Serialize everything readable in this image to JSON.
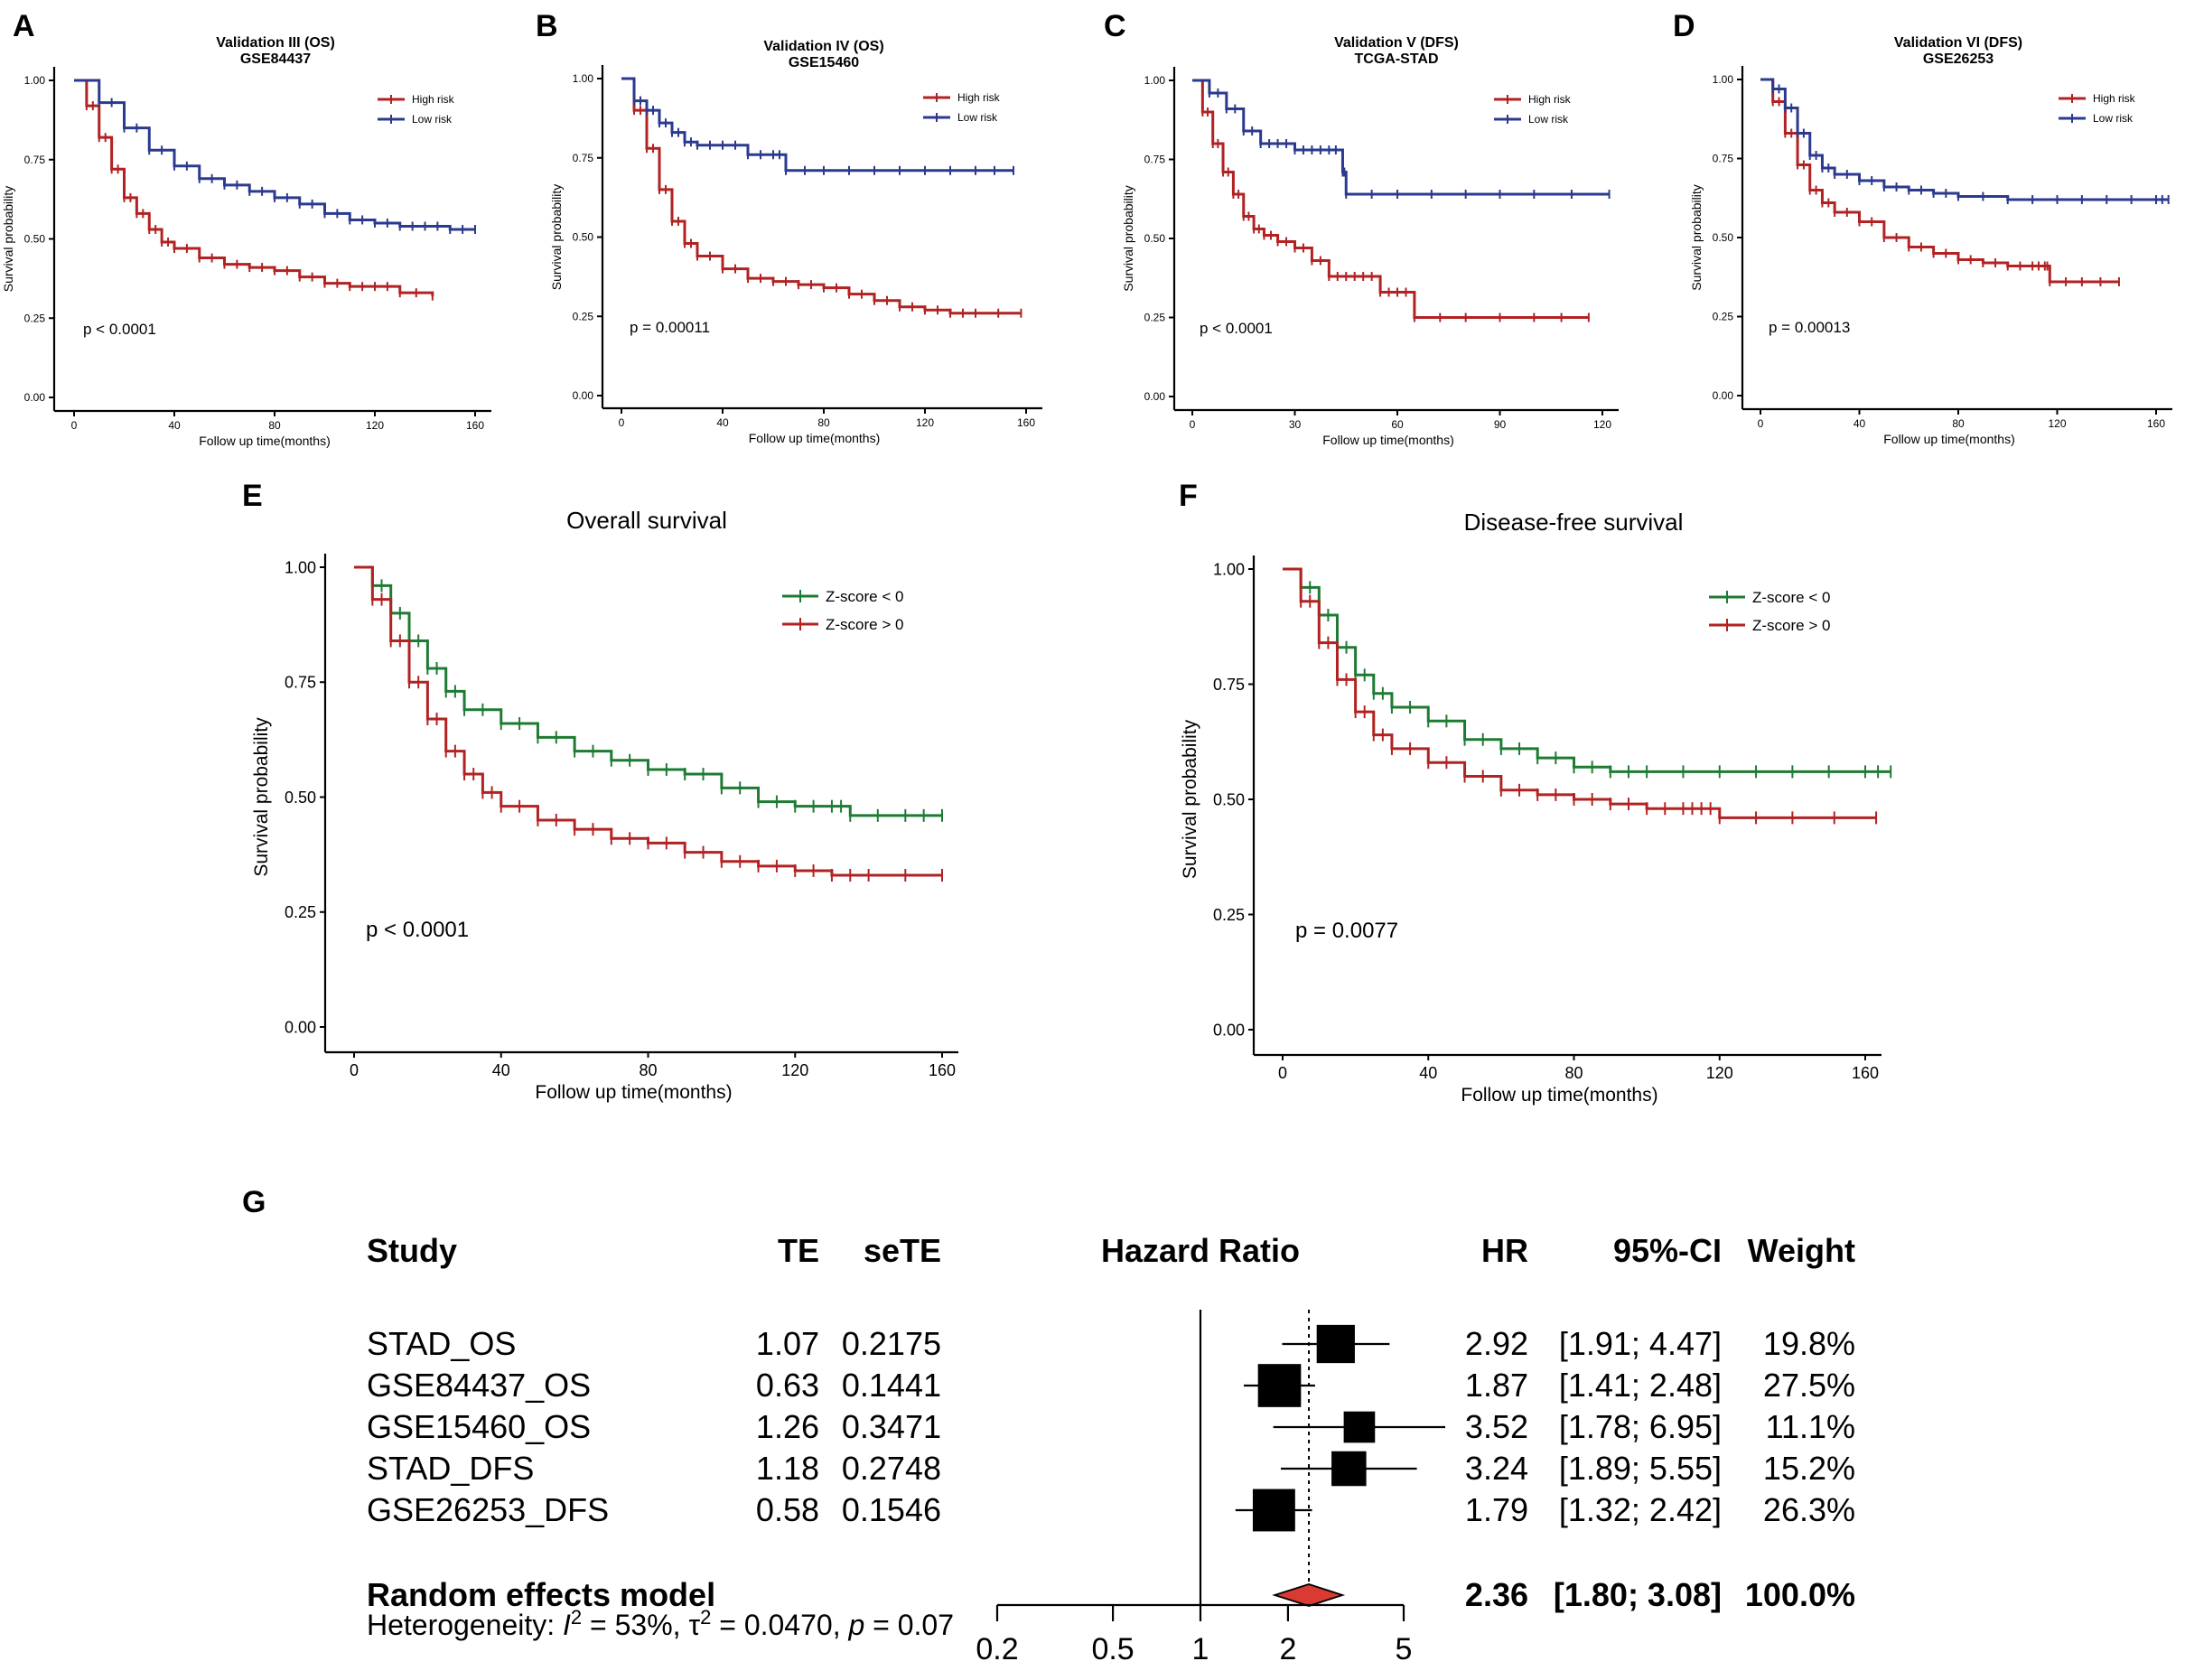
{
  "colors": {
    "high": "#B22222",
    "low": "#2B3A8F",
    "zneg": "#1E7B33",
    "zpos": "#B22222",
    "diamond": "#D93A32"
  },
  "panels": {
    "A": {
      "label": "A"
    },
    "B": {
      "label": "B"
    },
    "C": {
      "label": "C"
    },
    "D": {
      "label": "D"
    },
    "E": {
      "label": "E"
    },
    "F": {
      "label": "F"
    },
    "G": {
      "label": "G"
    }
  },
  "chart_data": [
    {
      "id": "A",
      "type": "line",
      "title": "Validation III (OS)",
      "subtitle": "GSE84437",
      "xlabel": "Follow up time(months)",
      "ylabel": "Survival probability",
      "xlim": [
        0,
        160
      ],
      "xticks": [
        "0",
        "40",
        "80",
        "120",
        "160"
      ],
      "xtick_values": [
        0,
        40,
        80,
        120,
        160
      ],
      "ylim": [
        0,
        1
      ],
      "yticks": [
        "0.00",
        "0.25",
        "0.50",
        "0.75",
        "1.00"
      ],
      "ytick_values": [
        0,
        0.25,
        0.5,
        0.75,
        1
      ],
      "pvalue": "p < 0.0001",
      "legend_position": "top-right",
      "series": [
        {
          "name": "High risk",
          "color_key": "high",
          "x": [
            0,
            5,
            10,
            15,
            20,
            25,
            30,
            35,
            40,
            50,
            60,
            70,
            80,
            90,
            100,
            110,
            120,
            130,
            143
          ],
          "y": [
            1.0,
            0.92,
            0.82,
            0.72,
            0.63,
            0.58,
            0.53,
            0.49,
            0.47,
            0.44,
            0.42,
            0.41,
            0.4,
            0.38,
            0.36,
            0.35,
            0.35,
            0.33,
            0.32
          ]
        },
        {
          "name": "Low risk",
          "color_key": "low",
          "x": [
            0,
            10,
            20,
            30,
            40,
            50,
            60,
            70,
            80,
            90,
            100,
            110,
            120,
            130,
            140,
            150,
            160
          ],
          "y": [
            1.0,
            0.93,
            0.85,
            0.78,
            0.73,
            0.69,
            0.67,
            0.65,
            0.63,
            0.61,
            0.58,
            0.56,
            0.55,
            0.54,
            0.54,
            0.53,
            0.53
          ]
        }
      ]
    },
    {
      "id": "B",
      "type": "line",
      "title": "Validation IV (OS)",
      "subtitle": "GSE15460",
      "xlabel": "Follow up time(months)",
      "ylabel": "Survival probability",
      "xlim": [
        0,
        160
      ],
      "xticks": [
        "0",
        "40",
        "80",
        "120",
        "160"
      ],
      "xtick_values": [
        0,
        40,
        80,
        120,
        160
      ],
      "ylim": [
        0,
        1
      ],
      "yticks": [
        "0.00",
        "0.25",
        "0.50",
        "0.75",
        "1.00"
      ],
      "ytick_values": [
        0,
        0.25,
        0.5,
        0.75,
        1
      ],
      "pvalue": "p = 0.00011",
      "legend_position": "top-right",
      "series": [
        {
          "name": "High risk",
          "color_key": "high",
          "x": [
            0,
            5,
            10,
            15,
            20,
            25,
            30,
            40,
            50,
            60,
            70,
            80,
            90,
            100,
            110,
            120,
            130,
            140,
            158
          ],
          "y": [
            1.0,
            0.9,
            0.78,
            0.65,
            0.55,
            0.48,
            0.44,
            0.4,
            0.37,
            0.36,
            0.35,
            0.34,
            0.32,
            0.3,
            0.28,
            0.27,
            0.26,
            0.26,
            0.26
          ]
        },
        {
          "name": "Low risk",
          "color_key": "low",
          "x": [
            0,
            5,
            10,
            15,
            20,
            25,
            30,
            40,
            50,
            60,
            65,
            80,
            100,
            120,
            140,
            155
          ],
          "y": [
            1.0,
            0.93,
            0.9,
            0.86,
            0.83,
            0.8,
            0.79,
            0.79,
            0.76,
            0.76,
            0.71,
            0.71,
            0.71,
            0.71,
            0.71,
            0.71
          ]
        }
      ]
    },
    {
      "id": "C",
      "type": "line",
      "title": "Validation V (DFS)",
      "subtitle": "TCGA-STAD",
      "xlabel": "Follow up time(months)",
      "ylabel": "Survival probability",
      "xlim": [
        0,
        120
      ],
      "xticks": [
        "0",
        "30",
        "60",
        "90",
        "120"
      ],
      "xtick_values": [
        0,
        30,
        60,
        90,
        120
      ],
      "ylim": [
        0,
        1
      ],
      "yticks": [
        "0.00",
        "0.25",
        "0.50",
        "0.75",
        "1.00"
      ],
      "ytick_values": [
        0,
        0.25,
        0.5,
        0.75,
        1
      ],
      "pvalue": "p < 0.0001",
      "legend_position": "top-right",
      "series": [
        {
          "name": "High risk",
          "color_key": "high",
          "x": [
            0,
            3,
            6,
            9,
            12,
            15,
            18,
            21,
            25,
            30,
            35,
            40,
            45,
            50,
            55,
            60,
            65,
            80,
            100,
            116
          ],
          "y": [
            1.0,
            0.9,
            0.8,
            0.71,
            0.64,
            0.57,
            0.53,
            0.51,
            0.49,
            0.47,
            0.43,
            0.38,
            0.38,
            0.38,
            0.33,
            0.33,
            0.25,
            0.25,
            0.25,
            0.25
          ]
        },
        {
          "name": "Low risk",
          "color_key": "low",
          "x": [
            0,
            5,
            10,
            15,
            20,
            25,
            30,
            35,
            40,
            44,
            45,
            60,
            80,
            100,
            122
          ],
          "y": [
            1.0,
            0.96,
            0.91,
            0.84,
            0.8,
            0.8,
            0.78,
            0.78,
            0.78,
            0.71,
            0.64,
            0.64,
            0.64,
            0.64,
            0.64
          ]
        }
      ]
    },
    {
      "id": "D",
      "type": "line",
      "title": "Validation VI (DFS)",
      "subtitle": "GSE26253",
      "xlabel": "Follow up time(months)",
      "ylabel": "Survival probability",
      "xlim": [
        0,
        160
      ],
      "xticks": [
        "0",
        "40",
        "80",
        "120",
        "160"
      ],
      "xtick_values": [
        0,
        40,
        80,
        120,
        160
      ],
      "ylim": [
        0,
        1
      ],
      "yticks": [
        "0.00",
        "0.25",
        "0.50",
        "0.75",
        "1.00"
      ],
      "ytick_values": [
        0,
        0.25,
        0.5,
        0.75,
        1
      ],
      "pvalue": "p = 0.00013",
      "legend_position": "top-right",
      "series": [
        {
          "name": "High risk",
          "color_key": "high",
          "x": [
            0,
            5,
            10,
            15,
            20,
            25,
            30,
            40,
            50,
            60,
            70,
            80,
            90,
            100,
            110,
            115,
            117,
            130,
            145
          ],
          "y": [
            1.0,
            0.93,
            0.83,
            0.73,
            0.65,
            0.61,
            0.58,
            0.55,
            0.5,
            0.47,
            0.45,
            0.43,
            0.42,
            0.41,
            0.41,
            0.41,
            0.36,
            0.36,
            0.36
          ]
        },
        {
          "name": "Low risk",
          "color_key": "low",
          "x": [
            0,
            5,
            10,
            15,
            20,
            25,
            30,
            40,
            50,
            60,
            70,
            80,
            100,
            120,
            140,
            160,
            165
          ],
          "y": [
            1.0,
            0.97,
            0.91,
            0.83,
            0.76,
            0.72,
            0.7,
            0.68,
            0.66,
            0.65,
            0.64,
            0.63,
            0.62,
            0.62,
            0.62,
            0.62,
            0.62
          ]
        }
      ]
    },
    {
      "id": "E",
      "type": "line",
      "title": "Overall survival",
      "subtitle": "",
      "xlabel": "Follow up time(months)",
      "ylabel": "Survival probability",
      "xlim": [
        0,
        160
      ],
      "xticks": [
        "0",
        "40",
        "80",
        "120",
        "160"
      ],
      "xtick_values": [
        0,
        40,
        80,
        120,
        160
      ],
      "ylim": [
        0,
        1
      ],
      "yticks": [
        "0.00",
        "0.25",
        "0.50",
        "0.75",
        "1.00"
      ],
      "ytick_values": [
        0,
        0.25,
        0.5,
        0.75,
        1
      ],
      "pvalue": "p < 0.0001",
      "legend_position": "top-right",
      "series": [
        {
          "name": "Z-score < 0",
          "color_key": "zneg",
          "x": [
            0,
            5,
            10,
            15,
            20,
            25,
            30,
            40,
            50,
            60,
            70,
            80,
            90,
            100,
            110,
            120,
            130,
            135,
            150,
            160
          ],
          "y": [
            1.0,
            0.96,
            0.9,
            0.84,
            0.78,
            0.73,
            0.69,
            0.66,
            0.63,
            0.6,
            0.58,
            0.56,
            0.55,
            0.52,
            0.49,
            0.48,
            0.48,
            0.46,
            0.46,
            0.46
          ]
        },
        {
          "name": "Z-score > 0",
          "color_key": "zpos",
          "x": [
            0,
            5,
            10,
            15,
            20,
            25,
            30,
            35,
            40,
            50,
            60,
            70,
            80,
            90,
            100,
            110,
            120,
            130,
            140,
            160
          ],
          "y": [
            1.0,
            0.93,
            0.84,
            0.75,
            0.67,
            0.6,
            0.55,
            0.51,
            0.48,
            0.45,
            0.43,
            0.41,
            0.4,
            0.38,
            0.36,
            0.35,
            0.34,
            0.33,
            0.33,
            0.33
          ]
        }
      ]
    },
    {
      "id": "F",
      "type": "line",
      "title": "Disease-free survival",
      "subtitle": "",
      "xlabel": "Follow up time(months)",
      "ylabel": "Survival probability",
      "xlim": [
        0,
        160
      ],
      "xticks": [
        "0",
        "40",
        "80",
        "120",
        "160"
      ],
      "xtick_values": [
        0,
        40,
        80,
        120,
        160
      ],
      "ylim": [
        0,
        1
      ],
      "yticks": [
        "0.00",
        "0.25",
        "0.50",
        "0.75",
        "1.00"
      ],
      "ytick_values": [
        0,
        0.25,
        0.5,
        0.75,
        1
      ],
      "pvalue": "p = 0.0077",
      "legend_position": "top-right",
      "series": [
        {
          "name": "Z-score < 0",
          "color_key": "zneg",
          "x": [
            0,
            5,
            10,
            15,
            20,
            25,
            30,
            40,
            50,
            60,
            70,
            80,
            90,
            100,
            120,
            140,
            160,
            167
          ],
          "y": [
            1.0,
            0.96,
            0.9,
            0.83,
            0.77,
            0.73,
            0.7,
            0.67,
            0.63,
            0.61,
            0.59,
            0.57,
            0.56,
            0.56,
            0.56,
            0.56,
            0.56,
            0.56
          ]
        },
        {
          "name": "Z-score > 0",
          "color_key": "zpos",
          "x": [
            0,
            5,
            10,
            15,
            20,
            25,
            30,
            40,
            50,
            60,
            70,
            80,
            90,
            100,
            110,
            115,
            120,
            140,
            163
          ],
          "y": [
            1.0,
            0.93,
            0.84,
            0.76,
            0.69,
            0.64,
            0.61,
            0.58,
            0.55,
            0.52,
            0.51,
            0.5,
            0.49,
            0.48,
            0.48,
            0.48,
            0.46,
            0.46,
            0.46
          ]
        }
      ]
    },
    {
      "id": "G",
      "type": "forest",
      "headers": {
        "study": "Study",
        "te": "TE",
        "sete": "seTE",
        "hr_title": "Hazard Ratio",
        "hr": "HR",
        "ci": "95%-CI",
        "weight": "Weight"
      },
      "studies": [
        {
          "study": "STAD_OS",
          "te": "1.07",
          "sete": "0.2175",
          "hr": 2.92,
          "lo": 1.91,
          "hi": 4.47,
          "hr_text": "2.92",
          "ci_text": "[1.91; 4.47]",
          "weight_text": "19.8%",
          "weight": 19.8
        },
        {
          "study": "GSE84437_OS",
          "te": "0.63",
          "sete": "0.1441",
          "hr": 1.87,
          "lo": 1.41,
          "hi": 2.48,
          "hr_text": "1.87",
          "ci_text": "[1.41; 2.48]",
          "weight_text": "27.5%",
          "weight": 27.5
        },
        {
          "study": "GSE15460_OS",
          "te": "1.26",
          "sete": "0.3471",
          "hr": 3.52,
          "lo": 1.78,
          "hi": 6.95,
          "hr_text": "3.52",
          "ci_text": "[1.78; 6.95]",
          "weight_text": "11.1%",
          "weight": 11.1
        },
        {
          "study": "STAD_DFS",
          "te": "1.18",
          "sete": "0.2748",
          "hr": 3.24,
          "lo": 1.89,
          "hi": 5.55,
          "hr_text": "3.24",
          "ci_text": "[1.89; 5.55]",
          "weight_text": "15.2%",
          "weight": 15.2
        },
        {
          "study": "GSE26253_DFS",
          "te": "0.58",
          "sete": "0.1546",
          "hr": 1.79,
          "lo": 1.32,
          "hi": 2.42,
          "hr_text": "1.79",
          "ci_text": "[1.32; 2.42]",
          "weight_text": "26.3%",
          "weight": 26.3
        }
      ],
      "pooled": {
        "label": "Random effects model",
        "hr": 2.36,
        "lo": 1.8,
        "hi": 3.08,
        "hr_text": "2.36",
        "ci_text": "[1.80; 3.08]",
        "weight_text": "100.0%"
      },
      "heterogeneity": {
        "prefix": "Heterogeneity: ",
        "i2_symbol": "I",
        "i2_exp": "2",
        "i2_value": " = 53%, ",
        "tau_symbol": "τ",
        "tau_exp": "2",
        "tau_value": " = 0.0470, ",
        "p_symbol": "p",
        "p_value": " = 0.07"
      },
      "xscale": "log",
      "xticks": [
        "0.2",
        "0.5",
        "1",
        "2",
        "5"
      ],
      "xtick_values": [
        0.2,
        0.5,
        1,
        2,
        5
      ]
    }
  ]
}
